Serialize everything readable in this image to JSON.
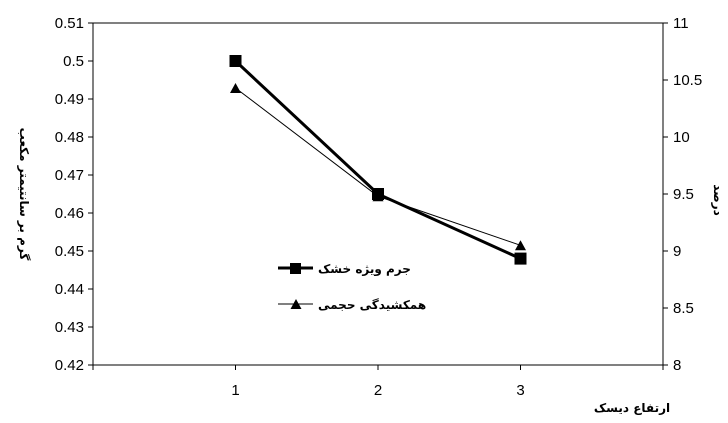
{
  "chart_data": {
    "type": "line",
    "categories": [
      "1",
      "2",
      "3"
    ],
    "x": [
      1,
      2,
      3
    ],
    "xlabel": "ارتفاع دیسک",
    "ylabel_left": "گرم بر سانتیمتر مکعب",
    "ylabel_right": "درصد",
    "ylim_left": [
      0.42,
      0.51
    ],
    "ylim_right": [
      8,
      11
    ],
    "yticks_left": [
      "0.42",
      "0.43",
      "0.44",
      "0.45",
      "0.46",
      "0.47",
      "0.48",
      "0.49",
      "0.5",
      "0.51"
    ],
    "yticks_right": [
      "8",
      "8.5",
      "9",
      "9.5",
      "10",
      "10.5",
      "11"
    ],
    "grid": false,
    "legend_position": "center",
    "series": [
      {
        "name": "جرم ویژه خشک",
        "axis": "left",
        "marker": "square",
        "values": [
          0.5,
          0.465,
          0.448
        ]
      },
      {
        "name": "همکشیدگی حجمی",
        "axis": "right",
        "marker": "triangle",
        "values": [
          10.43,
          9.48,
          9.05
        ]
      }
    ]
  }
}
